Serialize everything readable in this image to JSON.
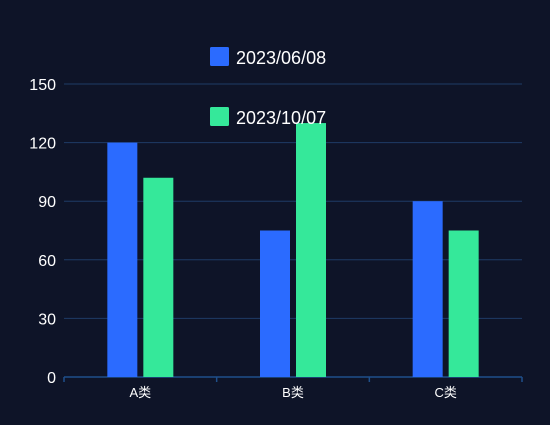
{
  "background": "#0e1428",
  "colors": {
    "grid": "#1f3b66",
    "axis": "#1f4f8a",
    "tick_text": "#ffffff",
    "legend_text": "#ffffff"
  },
  "chart_data": {
    "type": "bar",
    "categories": [
      "A类",
      "B类",
      "C类"
    ],
    "series": [
      {
        "name": "2023/06/08",
        "color": "#2b6bff",
        "values": [
          120,
          75,
          90
        ]
      },
      {
        "name": "2023/10/07",
        "color": "#35e89a",
        "values": [
          102,
          130,
          75
        ]
      }
    ],
    "ylim": [
      0,
      150
    ],
    "yticks": [
      "0",
      "30",
      "60",
      "90",
      "120",
      "150"
    ],
    "grid": true,
    "legend_position": "top-center"
  }
}
